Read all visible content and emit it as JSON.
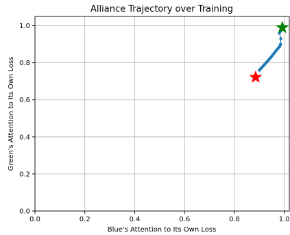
{
  "chart_data": {
    "type": "scatter",
    "title": "Alliance Trajectory over Training",
    "xlabel": "Blue's Attention to Its Own Loss",
    "ylabel": "Green's Attention to Its Own Loss",
    "xlim": [
      0.0,
      1.02
    ],
    "ylim": [
      0.0,
      1.05
    ],
    "x_ticks": [
      "0.0",
      "0.2",
      "0.4",
      "0.6",
      "0.8",
      "1.0"
    ],
    "y_ticks": [
      "0.0",
      "0.2",
      "0.4",
      "0.6",
      "0.8",
      "1.0"
    ],
    "grid": true,
    "series": [
      {
        "color": "#1f77b4",
        "points": [
          [
            0.9,
            0.76
          ],
          [
            0.905,
            0.768
          ],
          [
            0.91,
            0.775
          ],
          [
            0.915,
            0.782
          ],
          [
            0.92,
            0.79
          ],
          [
            0.925,
            0.797
          ],
          [
            0.93,
            0.805
          ],
          [
            0.935,
            0.812
          ],
          [
            0.94,
            0.82
          ],
          [
            0.945,
            0.828
          ],
          [
            0.95,
            0.836
          ],
          [
            0.955,
            0.845
          ],
          [
            0.96,
            0.853
          ],
          [
            0.965,
            0.862
          ],
          [
            0.97,
            0.87
          ],
          [
            0.975,
            0.878
          ],
          [
            0.98,
            0.886
          ],
          [
            0.983,
            0.893
          ],
          [
            0.985,
            0.9
          ],
          [
            0.986,
            0.93
          ],
          [
            0.98,
            0.96
          ],
          [
            0.985,
            0.97
          ],
          [
            0.99,
            0.98
          ]
        ]
      }
    ],
    "markers": [
      {
        "role": "start",
        "shape": "star",
        "color": "#ff0000",
        "x": 0.885,
        "y": 0.722
      },
      {
        "role": "end",
        "shape": "star",
        "color": "#008000",
        "x": 0.992,
        "y": 0.99
      }
    ]
  }
}
